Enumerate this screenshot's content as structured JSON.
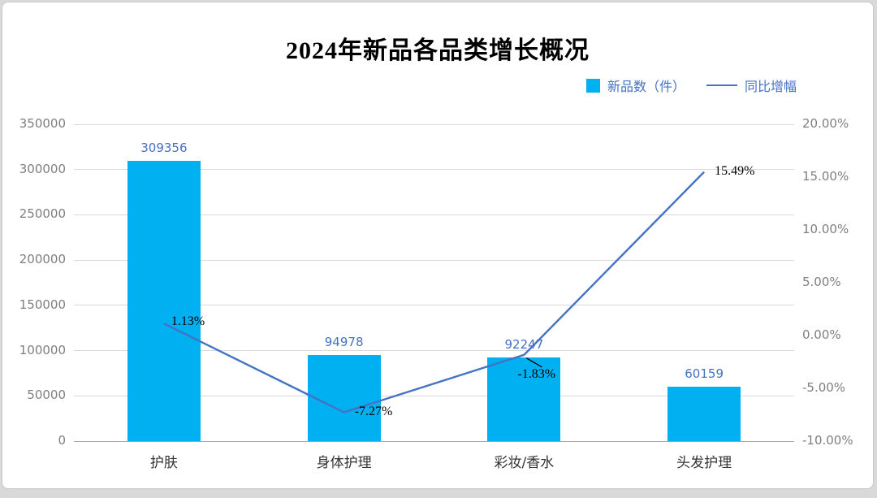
{
  "chart_data": {
    "type": "combo (bar + line)",
    "title": "2024年新品各品类增长概况",
    "categories": [
      "护肤",
      "身体护理",
      "彩妆/香水",
      "头发护理"
    ],
    "series": [
      {
        "name": "新品数（件）",
        "type": "bar",
        "axis": "left",
        "values": [
          309356,
          94978,
          92247,
          60159
        ],
        "labels": [
          "309356",
          "94978",
          "92247",
          "60159"
        ]
      },
      {
        "name": "同比增幅",
        "type": "line",
        "axis": "right",
        "values": [
          1.13,
          -7.27,
          -1.83,
          15.49
        ],
        "labels": [
          "1.13%",
          "-7.27%",
          "-1.83%",
          "15.49%"
        ]
      }
    ],
    "left_axis": {
      "min": 0,
      "max": 350000,
      "step": 50000,
      "tick_labels": [
        "0",
        "50000",
        "100000",
        "150000",
        "200000",
        "250000",
        "300000",
        "350000"
      ]
    },
    "right_axis": {
      "min": -10,
      "max": 20,
      "step": 5,
      "tick_labels": [
        "-10.00%",
        "-5.00%",
        "0.00%",
        "5.00%",
        "10.00%",
        "15.00%",
        "20.00%"
      ]
    },
    "grid": true,
    "legend_position": "top-right",
    "colors": {
      "bar": "#00b0f0",
      "line": "#4472c4",
      "bar_label": "#4472c4",
      "line_label": "#000000",
      "legend_text": "#4472c4",
      "grid": "#d9d9d9",
      "axis_line": "#a6a6a6",
      "axis_text": "#7f7f7f",
      "category_text": "#333333"
    }
  },
  "legend": {
    "bar_label": "新品数（件）",
    "line_label": "同比增幅"
  }
}
